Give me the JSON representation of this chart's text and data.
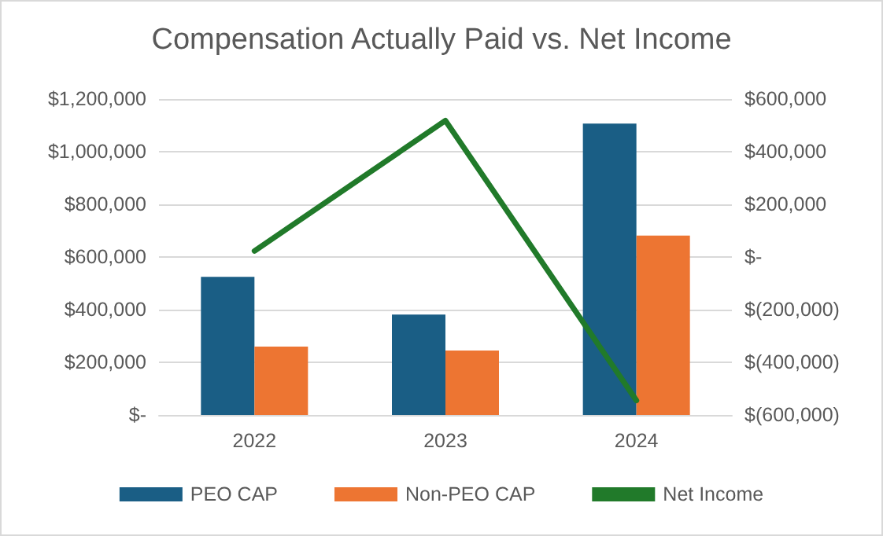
{
  "chart_data": {
    "type": "bar",
    "title": "Compensation Actually Paid vs. Net Income",
    "categories": [
      "2022",
      "2023",
      "2024"
    ],
    "series": [
      {
        "name": "PEO CAP",
        "color": "#1a5e85",
        "values": [
          525000,
          381000,
          1107000
        ]
      },
      {
        "name": "Non-PEO CAP",
        "color": "#ed7532",
        "values": [
          260000,
          245000,
          681000
        ]
      },
      {
        "name": "Net Income",
        "type": "line",
        "axis": "y2",
        "color": "#217a2a",
        "values": [
          23000,
          518000,
          -545000
        ]
      }
    ],
    "ylim": [
      0,
      1200000
    ],
    "yticks": [
      {
        "value": 0,
        "label": "$-"
      },
      {
        "value": 200000,
        "label": "$200,000"
      },
      {
        "value": 400000,
        "label": "$400,000"
      },
      {
        "value": 600000,
        "label": "$600,000"
      },
      {
        "value": 800000,
        "label": "$800,000"
      },
      {
        "value": 1000000,
        "label": "$1,000,000"
      },
      {
        "value": 1200000,
        "label": "$1,200,000"
      }
    ],
    "y2lim": [
      -600000,
      600000
    ],
    "y2ticks": [
      {
        "value": -600000,
        "label": "$(600,000)"
      },
      {
        "value": -400000,
        "label": "$(400,000)"
      },
      {
        "value": -200000,
        "label": "$(200,000)"
      },
      {
        "value": 0,
        "label": "$-"
      },
      {
        "value": 200000,
        "label": "$200,000"
      },
      {
        "value": 400000,
        "label": "$400,000"
      },
      {
        "value": 600000,
        "label": "$600,000"
      }
    ],
    "grid": "y",
    "legend": "bottom",
    "marker": "none",
    "line_style": "solid"
  }
}
